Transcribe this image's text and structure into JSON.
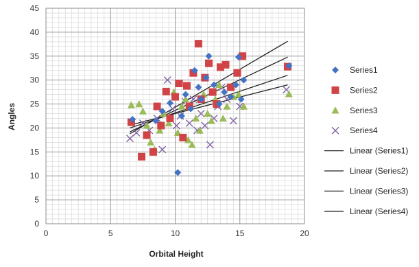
{
  "chart_data": {
    "type": "scatter",
    "title": "",
    "xlabel": "Orbital Height",
    "ylabel": "Angles",
    "xlim": [
      0,
      20
    ],
    "ylim": [
      0,
      45
    ],
    "x_major_ticks": [
      0,
      5,
      10,
      15,
      20
    ],
    "y_major_ticks": [
      0,
      5,
      10,
      15,
      20,
      25,
      30,
      35,
      40,
      45
    ],
    "x_minor_step": 0.5,
    "y_minor_step": 1,
    "grid": true,
    "legend_position": "right",
    "series": [
      {
        "name": "Series1",
        "marker": "diamond",
        "color": "#4472C4",
        "points": [
          [
            6.7,
            21.8
          ],
          [
            8.5,
            21.5
          ],
          [
            9.0,
            23.5
          ],
          [
            9.6,
            25.2
          ],
          [
            10.2,
            10.7
          ],
          [
            10.5,
            22.5
          ],
          [
            10.8,
            27.0
          ],
          [
            11.2,
            24.0
          ],
          [
            11.5,
            32.0
          ],
          [
            11.8,
            28.5
          ],
          [
            12.0,
            26.0
          ],
          [
            12.4,
            30.5
          ],
          [
            12.6,
            35.0
          ],
          [
            13.0,
            29.0
          ],
          [
            13.4,
            25.0
          ],
          [
            13.8,
            27.5
          ],
          [
            14.3,
            26.5
          ],
          [
            14.7,
            29.0
          ],
          [
            14.9,
            34.8
          ],
          [
            15.1,
            26.0
          ],
          [
            15.3,
            30.0
          ],
          [
            18.8,
            33.0
          ]
        ]
      },
      {
        "name": "Series2",
        "marker": "square",
        "color": "#D04447",
        "points": [
          [
            6.6,
            21.2
          ],
          [
            7.4,
            14.0
          ],
          [
            7.8,
            18.5
          ],
          [
            8.3,
            15.0
          ],
          [
            8.6,
            24.5
          ],
          [
            8.9,
            20.5
          ],
          [
            9.3,
            27.6
          ],
          [
            9.6,
            22.0
          ],
          [
            10.0,
            26.5
          ],
          [
            10.3,
            29.3
          ],
          [
            10.6,
            18.0
          ],
          [
            10.9,
            28.8
          ],
          [
            11.1,
            24.5
          ],
          [
            11.4,
            31.5
          ],
          [
            11.8,
            37.6
          ],
          [
            12.0,
            26.0
          ],
          [
            12.3,
            30.5
          ],
          [
            12.6,
            33.5
          ],
          [
            12.9,
            27.5
          ],
          [
            13.2,
            25.0
          ],
          [
            13.5,
            32.7
          ],
          [
            13.9,
            33.2
          ],
          [
            14.3,
            28.5
          ],
          [
            14.8,
            31.5
          ],
          [
            15.2,
            35.0
          ],
          [
            18.7,
            32.8
          ]
        ]
      },
      {
        "name": "Series3",
        "marker": "triangle",
        "color": "#9BBB59",
        "points": [
          [
            6.6,
            24.8
          ],
          [
            7.2,
            25.0
          ],
          [
            7.5,
            23.5
          ],
          [
            7.8,
            20.5
          ],
          [
            8.1,
            17.0
          ],
          [
            8.4,
            15.5
          ],
          [
            8.8,
            19.5
          ],
          [
            9.1,
            23.0
          ],
          [
            9.5,
            21.0
          ],
          [
            9.9,
            27.5
          ],
          [
            10.2,
            19.0
          ],
          [
            10.5,
            24.5
          ],
          [
            10.8,
            26.0
          ],
          [
            11.0,
            17.5
          ],
          [
            11.3,
            16.5
          ],
          [
            11.6,
            22.0
          ],
          [
            11.9,
            19.5
          ],
          [
            12.2,
            27.0
          ],
          [
            12.5,
            23.0
          ],
          [
            12.8,
            21.5
          ],
          [
            13.1,
            26.0
          ],
          [
            13.4,
            29.0
          ],
          [
            13.7,
            22.0
          ],
          [
            14.0,
            24.5
          ],
          [
            14.5,
            26.5
          ],
          [
            14.9,
            27.0
          ],
          [
            15.3,
            24.5
          ],
          [
            18.8,
            27.1
          ]
        ]
      },
      {
        "name": "Series4",
        "marker": "x",
        "color": "#8064A2",
        "points": [
          [
            6.5,
            17.8
          ],
          [
            7.0,
            19.0
          ],
          [
            7.5,
            21.0
          ],
          [
            8.0,
            19.5
          ],
          [
            8.6,
            22.0
          ],
          [
            9.0,
            15.5
          ],
          [
            9.4,
            30.0
          ],
          [
            9.8,
            24.0
          ],
          [
            10.1,
            20.5
          ],
          [
            10.4,
            22.5
          ],
          [
            10.8,
            25.5
          ],
          [
            11.1,
            21.0
          ],
          [
            11.4,
            26.0
          ],
          [
            11.7,
            19.5
          ],
          [
            12.0,
            23.0
          ],
          [
            12.3,
            20.5
          ],
          [
            12.7,
            16.5
          ],
          [
            13.0,
            22.0
          ],
          [
            13.3,
            24.5
          ],
          [
            13.6,
            28.5
          ],
          [
            14.0,
            26.0
          ],
          [
            14.5,
            21.5
          ],
          [
            15.0,
            24.5
          ],
          [
            18.6,
            28.0
          ]
        ]
      }
    ],
    "trendlines": [
      {
        "name": "Linear (Series1)",
        "color": "#222222",
        "x": [
          6.5,
          18.7
        ],
        "y": [
          18.8,
          38.1
        ]
      },
      {
        "name": "Linear (Series2)",
        "color": "#222222",
        "x": [
          6.5,
          18.7
        ],
        "y": [
          19.2,
          34.8
        ]
      },
      {
        "name": "Linear (Series3)",
        "color": "#222222",
        "x": [
          6.5,
          18.7
        ],
        "y": [
          20.0,
          31.0
        ]
      },
      {
        "name": "Linear (Series4)",
        "color": "#222222",
        "x": [
          6.5,
          18.7
        ],
        "y": [
          20.6,
          29.0
        ]
      }
    ],
    "legend": [
      {
        "label": "Series1",
        "marker": "diamond",
        "color": "#4472C4"
      },
      {
        "label": "Series2",
        "marker": "square",
        "color": "#D04447"
      },
      {
        "label": "Series3",
        "marker": "triangle",
        "color": "#9BBB59"
      },
      {
        "label": "Series4",
        "marker": "x",
        "color": "#8064A2"
      },
      {
        "label": "Linear (Series1)",
        "marker": "line",
        "color": "#222222"
      },
      {
        "label": "Linear (Series2)",
        "marker": "line",
        "color": "#222222"
      },
      {
        "label": "Linear (Series3)",
        "marker": "line",
        "color": "#222222"
      },
      {
        "label": "Linear (Series4)",
        "marker": "line",
        "color": "#222222"
      }
    ]
  }
}
